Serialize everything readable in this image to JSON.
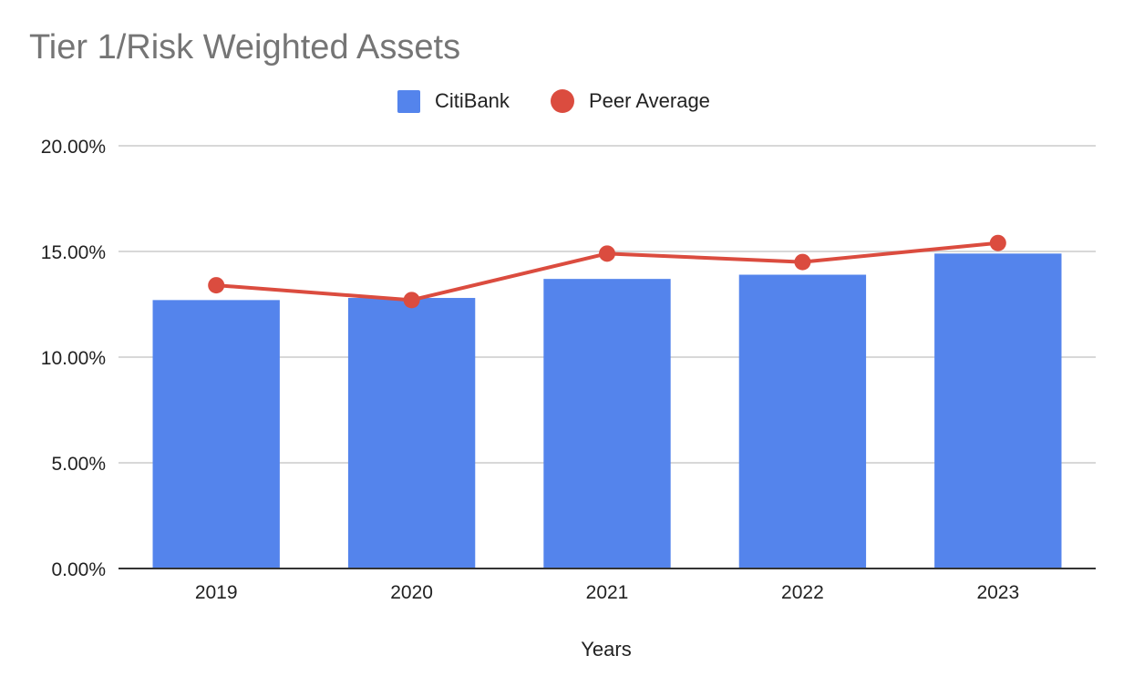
{
  "chart_data": {
    "type": "bar",
    "title": "Tier 1/Risk Weighted Assets",
    "xlabel": "Years",
    "ylabel": "",
    "categories": [
      "2019",
      "2020",
      "2021",
      "2022",
      "2023"
    ],
    "ylim": [
      0,
      20
    ],
    "yticks": [
      0,
      5,
      10,
      15,
      20
    ],
    "ytick_labels": [
      "0.00%",
      "5.00%",
      "10.00%",
      "15.00%",
      "20.00%"
    ],
    "grid": true,
    "legend_position": "top-center",
    "series": [
      {
        "name": "CitiBank",
        "type": "bar",
        "color": "#5484EC",
        "values": [
          12.7,
          12.8,
          13.7,
          13.9,
          14.9
        ]
      },
      {
        "name": "Peer Average",
        "type": "line",
        "color": "#DB4C3F",
        "values": [
          13.4,
          12.7,
          14.9,
          14.5,
          15.4
        ]
      }
    ]
  }
}
